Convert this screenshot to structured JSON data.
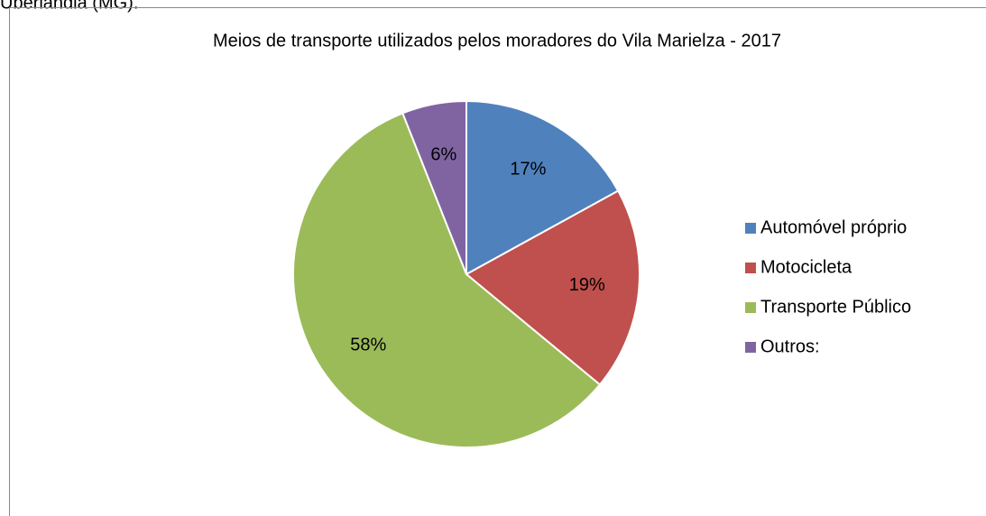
{
  "caption_top": "Uberlândia (MG).",
  "chart_data": {
    "type": "pie",
    "title": "Meios de transporte utilizados pelos moradores do Vila Marielza - 2017",
    "categories": [
      "Automóvel próprio",
      "Motocicleta",
      "Transporte Público",
      "Outros:"
    ],
    "values": [
      17,
      19,
      58,
      6
    ],
    "value_labels": [
      "17%",
      "19%",
      "58%",
      "6%"
    ],
    "colors": [
      "#4f81bd",
      "#c0504d",
      "#9bbb59",
      "#8064a2"
    ],
    "legend": "right"
  }
}
